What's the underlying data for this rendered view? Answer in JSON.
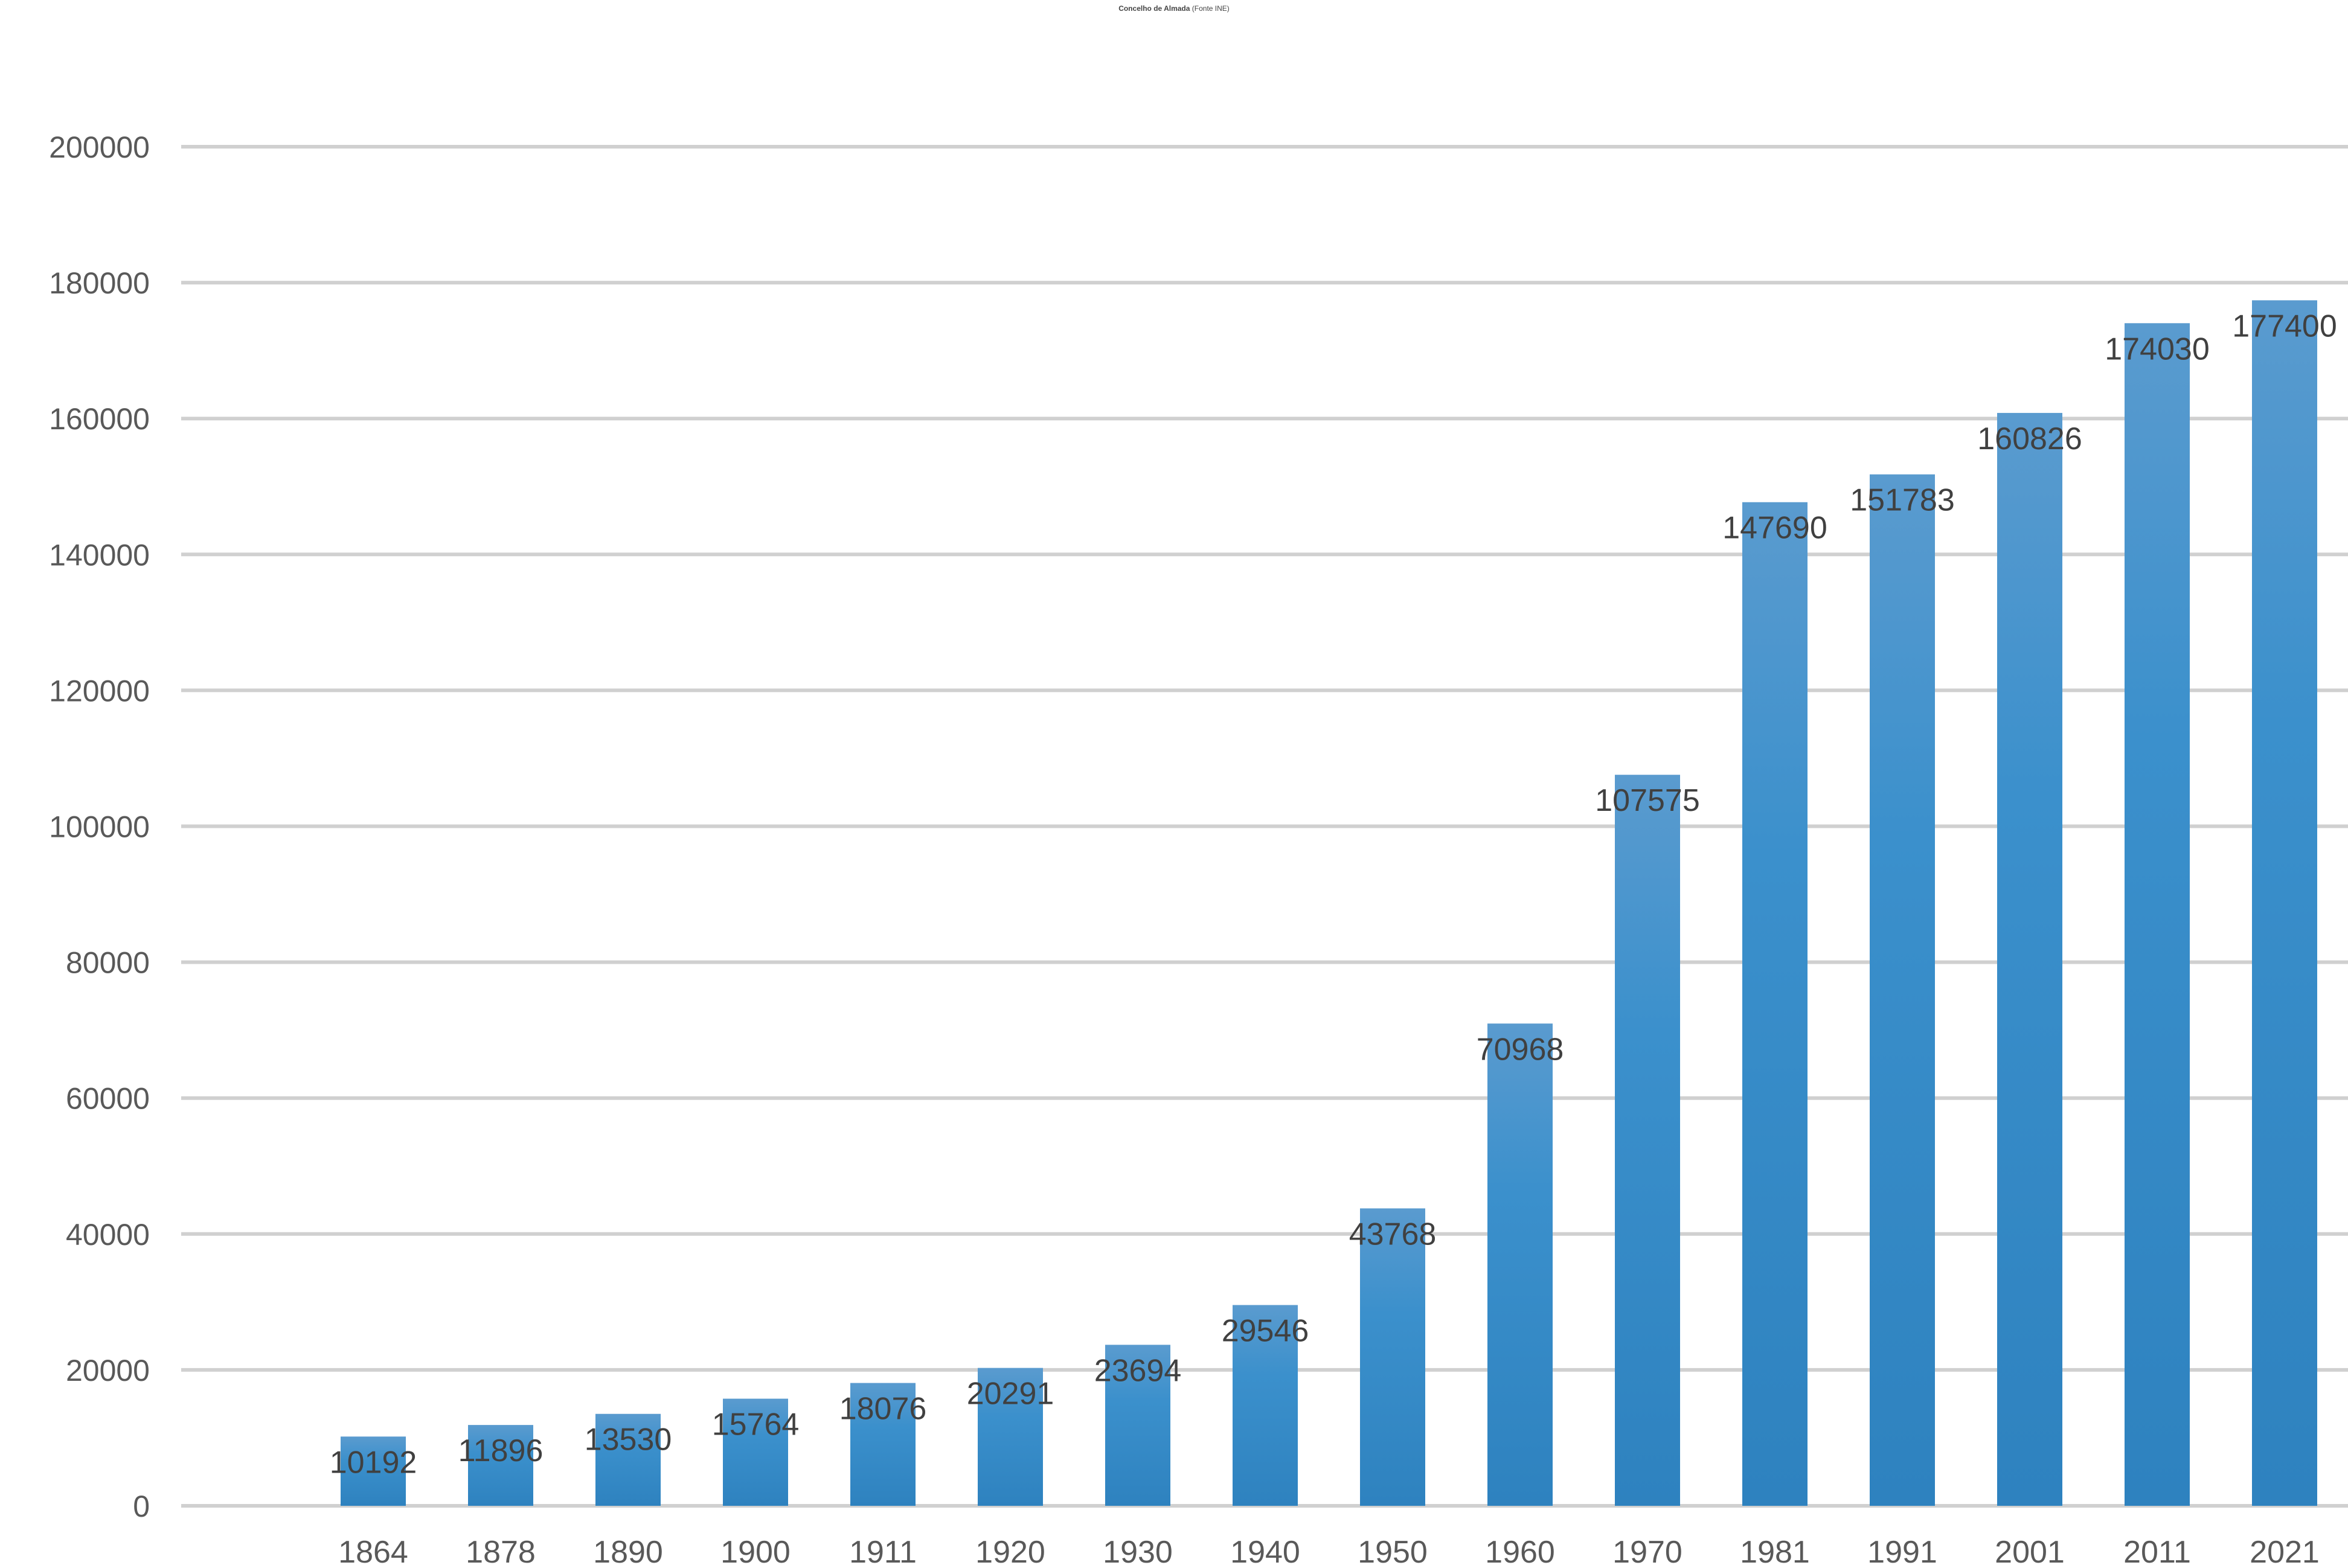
{
  "chart_data": {
    "type": "bar",
    "title_bold": "Concelho de Almada",
    "title_rest": " (Fonte INE)",
    "categories": [
      "1864",
      "1878",
      "1890",
      "1900",
      "1911",
      "1920",
      "1930",
      "1940",
      "1950",
      "1960",
      "1970",
      "1981",
      "1991",
      "2001",
      "2011",
      "2021"
    ],
    "values": [
      10192,
      11896,
      13530,
      15764,
      18076,
      20291,
      23694,
      29546,
      43768,
      70968,
      107575,
      147690,
      151783,
      160826,
      174030,
      177400
    ],
    "data_labels": [
      "10192",
      "11896",
      "13530",
      "15764",
      "18076",
      "20291",
      "23694",
      "29546",
      "43768",
      "70968",
      "107575",
      "147690",
      "151783",
      "160826",
      "174030",
      "177400"
    ],
    "ylim": [
      0,
      200000
    ],
    "yticks": [
      0,
      20000,
      40000,
      60000,
      80000,
      100000,
      120000,
      140000,
      160000,
      180000,
      200000
    ],
    "ytick_labels": [
      "0",
      "20000",
      "40000",
      "60000",
      "80000",
      "100000",
      "120000",
      "140000",
      "160000",
      "180000",
      "200000"
    ],
    "grid": true,
    "legend": "none",
    "colors": {
      "bar_top": "#5a9bcf",
      "bar_mid": "#3b90cc",
      "bar_bottom": "#2e82bf",
      "grid": "#d0d0d0"
    }
  }
}
